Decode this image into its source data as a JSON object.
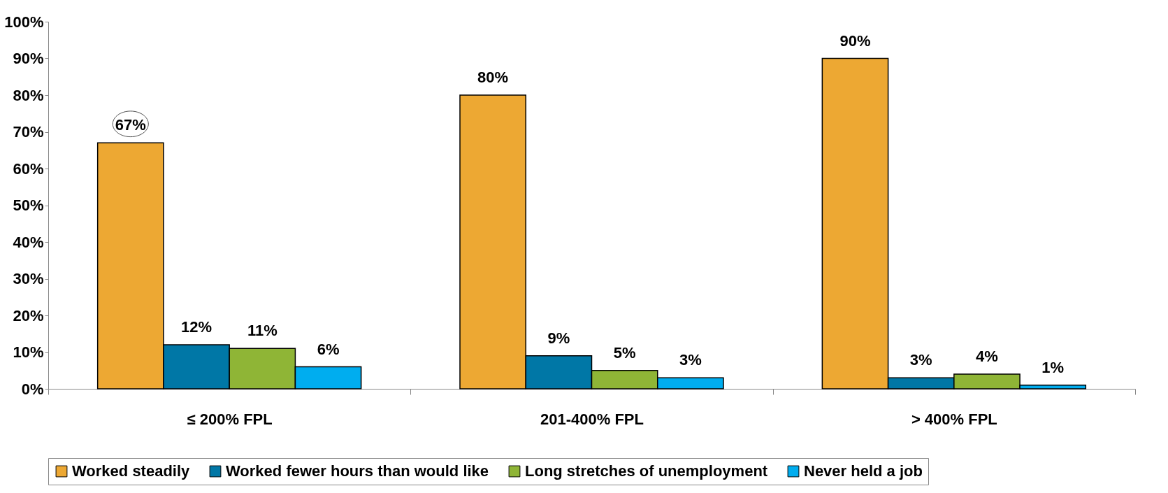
{
  "chart_data": {
    "type": "bar",
    "categories": [
      "≤ 200% FPL",
      "201-400% FPL",
      "> 400% FPL"
    ],
    "series": [
      {
        "name": "Worked steadily",
        "color": "#eda833",
        "values": [
          67,
          80,
          90
        ],
        "value_labels": [
          "67%",
          "80%",
          "90%"
        ]
      },
      {
        "name": "Worked fewer hours than would like",
        "color": "#0077a6",
        "values": [
          12,
          9,
          3
        ],
        "value_labels": [
          "12%",
          "9%",
          "3%"
        ]
      },
      {
        "name": "Long stretches of unemployment",
        "color": "#8fb536",
        "values": [
          11,
          5,
          4
        ],
        "value_labels": [
          "11%",
          "5%",
          "4%"
        ]
      },
      {
        "name": "Never held a job",
        "color": "#00adef",
        "values": [
          6,
          3,
          1
        ],
        "value_labels": [
          "6%",
          "3%",
          "1%"
        ]
      }
    ],
    "ylim": [
      0,
      100
    ],
    "yticks": [
      {
        "value": 0,
        "label": "0%"
      },
      {
        "value": 10,
        "label": "10%"
      },
      {
        "value": 20,
        "label": "20%"
      },
      {
        "value": 30,
        "label": "30%"
      },
      {
        "value": 40,
        "label": "40%"
      },
      {
        "value": 50,
        "label": "50%"
      },
      {
        "value": 60,
        "label": "60%"
      },
      {
        "value": 70,
        "label": "70%"
      },
      {
        "value": 80,
        "label": "80%"
      },
      {
        "value": 90,
        "label": "90%"
      },
      {
        "value": 100,
        "label": "100%"
      }
    ],
    "grid": false,
    "legend": "bottom"
  }
}
